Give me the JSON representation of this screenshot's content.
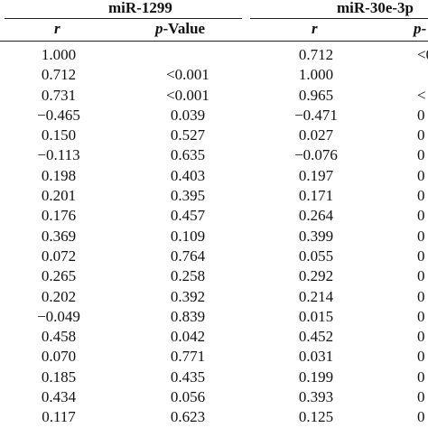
{
  "header": {
    "group1": "miR-1299",
    "group2": "miR-30e-3p",
    "col_r_1": "r",
    "col_p_1": "p-Value",
    "col_r_2": "r",
    "col_p_2": "p-"
  },
  "rows": [
    {
      "r1": "1.000",
      "p1": "",
      "r2": "0.712",
      "p2": "<0"
    },
    {
      "r1": "0.712",
      "p1": "<0.001",
      "r2": "1.000",
      "p2": ""
    },
    {
      "r1": "0.731",
      "p1": "<0.001",
      "r2": "0.965",
      "p2": "<"
    },
    {
      "r1": "−0.465",
      "p1": "0.039",
      "r2": "−0.471",
      "p2": "0"
    },
    {
      "r1": "0.150",
      "p1": "0.527",
      "r2": "0.027",
      "p2": "0"
    },
    {
      "r1": "−0.113",
      "p1": "0.635",
      "r2": "−0.076",
      "p2": "0"
    },
    {
      "r1": "0.198",
      "p1": "0.403",
      "r2": "0.197",
      "p2": "0"
    },
    {
      "r1": "0.201",
      "p1": "0.395",
      "r2": "0.171",
      "p2": "0"
    },
    {
      "r1": "0.176",
      "p1": "0.457",
      "r2": "0.264",
      "p2": "0"
    },
    {
      "r1": "0.369",
      "p1": "0.109",
      "r2": "0.399",
      "p2": "0"
    },
    {
      "r1": "0.072",
      "p1": "0.764",
      "r2": "0.055",
      "p2": "0"
    },
    {
      "r1": "0.265",
      "p1": "0.258",
      "r2": "0.292",
      "p2": "0"
    },
    {
      "r1": "0.202",
      "p1": "0.392",
      "r2": "0.214",
      "p2": "0"
    },
    {
      "r1": "−0.049",
      "p1": "0.839",
      "r2": "0.015",
      "p2": "0"
    },
    {
      "r1": "0.458",
      "p1": "0.042",
      "r2": "0.452",
      "p2": "0"
    },
    {
      "r1": "0.070",
      "p1": "0.771",
      "r2": "0.031",
      "p2": "0"
    },
    {
      "r1": "0.185",
      "p1": "0.435",
      "r2": "0.199",
      "p2": "0"
    },
    {
      "r1": "0.434",
      "p1": "0.056",
      "r2": "0.393",
      "p2": "0"
    },
    {
      "r1": "0.117",
      "p1": "0.623",
      "r2": "0.125",
      "p2": "0"
    }
  ]
}
